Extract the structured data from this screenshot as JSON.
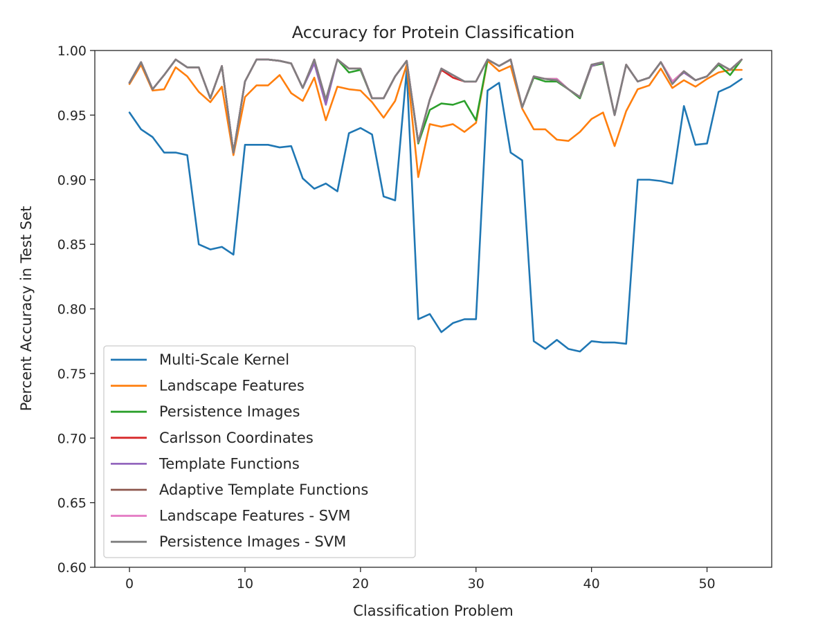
{
  "chart_data": {
    "type": "line",
    "title": "Accuracy for Protein Classification",
    "xlabel": "Classification Problem",
    "ylabel": "Percent Accuracy in Test Set",
    "xlim": [
      -3,
      55.6
    ],
    "ylim": [
      0.6,
      1.0
    ],
    "xticks": [
      0,
      10,
      20,
      30,
      40,
      50
    ],
    "yticks": [
      0.6,
      0.65,
      0.7,
      0.75,
      0.8,
      0.85,
      0.9,
      0.95,
      1.0
    ],
    "xtick_labels": [
      "0",
      "10",
      "20",
      "30",
      "40",
      "50"
    ],
    "ytick_labels": [
      "0.60",
      "0.65",
      "0.70",
      "0.75",
      "0.80",
      "0.85",
      "0.90",
      "0.95",
      "1.00"
    ],
    "grid": false,
    "legend_position": "lower-left",
    "x": [
      0,
      1,
      2,
      3,
      4,
      5,
      6,
      7,
      8,
      9,
      10,
      11,
      12,
      13,
      14,
      15,
      16,
      17,
      18,
      19,
      20,
      21,
      22,
      23,
      24,
      25,
      26,
      27,
      28,
      29,
      30,
      31,
      32,
      33,
      34,
      35,
      36,
      37,
      38,
      39,
      40,
      41,
      42,
      43,
      44,
      45,
      46,
      47,
      48,
      49,
      50,
      51,
      52,
      53
    ],
    "series": [
      {
        "name": "Multi-Scale Kernel",
        "color": "#1f77b4",
        "values": [
          0.952,
          0.939,
          0.933,
          0.921,
          0.921,
          0.919,
          0.85,
          0.846,
          0.848,
          0.842,
          0.927,
          0.927,
          0.927,
          0.925,
          0.926,
          0.901,
          0.893,
          0.897,
          0.891,
          0.936,
          0.94,
          0.935,
          0.887,
          0.884,
          0.985,
          0.792,
          0.796,
          0.782,
          0.789,
          0.792,
          0.792,
          0.969,
          0.975,
          0.921,
          0.915,
          0.775,
          0.769,
          0.776,
          0.769,
          0.767,
          0.775,
          0.774,
          0.774,
          0.773,
          0.9,
          0.9,
          0.899,
          0.897,
          0.957,
          0.927,
          0.928,
          0.968,
          0.972,
          0.978
        ]
      },
      {
        "name": "Landscape Features",
        "color": "#ff7f0e",
        "values": [
          0.974,
          0.989,
          0.969,
          0.97,
          0.987,
          0.98,
          0.968,
          0.96,
          0.972,
          0.919,
          0.964,
          0.973,
          0.973,
          0.981,
          0.967,
          0.961,
          0.979,
          0.946,
          0.972,
          0.97,
          0.969,
          0.96,
          0.948,
          0.961,
          0.989,
          0.902,
          0.943,
          0.941,
          0.943,
          0.937,
          0.944,
          0.992,
          0.984,
          0.988,
          0.955,
          0.939,
          0.939,
          0.931,
          0.93,
          0.937,
          0.947,
          0.952,
          0.926,
          0.953,
          0.97,
          0.973,
          0.986,
          0.971,
          0.977,
          0.972,
          0.978,
          0.983,
          0.985,
          0.985
        ]
      },
      {
        "name": "Persistence Images",
        "color": "#2ca02c",
        "values": [
          0.975,
          0.991,
          0.97,
          0.981,
          0.993,
          0.987,
          0.987,
          0.963,
          0.988,
          0.921,
          0.976,
          0.993,
          0.993,
          0.992,
          0.99,
          0.971,
          0.993,
          0.961,
          0.993,
          0.983,
          0.985,
          0.963,
          0.963,
          0.98,
          0.992,
          0.928,
          0.954,
          0.959,
          0.958,
          0.961,
          0.946,
          0.993,
          0.988,
          0.993,
          0.956,
          0.979,
          0.976,
          0.976,
          0.97,
          0.963,
          0.988,
          0.99,
          0.95,
          0.989,
          0.976,
          0.979,
          0.991,
          0.976,
          0.983,
          0.977,
          0.98,
          0.989,
          0.981,
          0.993
        ]
      },
      {
        "name": "Carlsson Coordinates",
        "color": "#d62728",
        "values": [
          0.975,
          0.991,
          0.97,
          0.981,
          0.993,
          0.987,
          0.987,
          0.963,
          0.988,
          0.921,
          0.976,
          0.993,
          0.993,
          0.992,
          0.99,
          0.971,
          0.993,
          0.961,
          0.993,
          0.986,
          0.986,
          0.963,
          0.963,
          0.98,
          0.992,
          0.929,
          0.962,
          0.985,
          0.979,
          0.976,
          0.976,
          0.993,
          0.988,
          0.993,
          0.956,
          0.98,
          0.978,
          0.977,
          0.97,
          0.964,
          0.988,
          0.991,
          0.95,
          0.989,
          0.976,
          0.979,
          0.991,
          0.976,
          0.983,
          0.977,
          0.98,
          0.99,
          0.985,
          0.993
        ]
      },
      {
        "name": "Template Functions",
        "color": "#9467bd",
        "values": [
          0.975,
          0.991,
          0.97,
          0.981,
          0.993,
          0.987,
          0.987,
          0.963,
          0.988,
          0.921,
          0.976,
          0.993,
          0.993,
          0.992,
          0.99,
          0.971,
          0.99,
          0.958,
          0.993,
          0.986,
          0.986,
          0.963,
          0.963,
          0.98,
          0.992,
          0.929,
          0.962,
          0.986,
          0.981,
          0.976,
          0.976,
          0.993,
          0.988,
          0.993,
          0.956,
          0.98,
          0.978,
          0.977,
          0.97,
          0.964,
          0.988,
          0.991,
          0.95,
          0.989,
          0.976,
          0.979,
          0.991,
          0.976,
          0.983,
          0.977,
          0.98,
          0.99,
          0.985,
          0.993
        ]
      },
      {
        "name": "Adaptive Template Functions",
        "color": "#8c564b",
        "values": [
          0.975,
          0.991,
          0.97,
          0.981,
          0.993,
          0.987,
          0.987,
          0.963,
          0.988,
          0.921,
          0.976,
          0.993,
          0.993,
          0.992,
          0.99,
          0.971,
          0.993,
          0.962,
          0.993,
          0.986,
          0.986,
          0.963,
          0.963,
          0.98,
          0.992,
          0.929,
          0.962,
          0.986,
          0.981,
          0.976,
          0.976,
          0.993,
          0.988,
          0.993,
          0.956,
          0.98,
          0.978,
          0.978,
          0.97,
          0.964,
          0.989,
          0.991,
          0.95,
          0.989,
          0.976,
          0.979,
          0.991,
          0.976,
          0.984,
          0.977,
          0.98,
          0.99,
          0.985,
          0.993
        ]
      },
      {
        "name": "Landscape Features - SVM",
        "color": "#e377c2",
        "values": [
          0.975,
          0.991,
          0.97,
          0.981,
          0.993,
          0.987,
          0.987,
          0.963,
          0.988,
          0.921,
          0.976,
          0.993,
          0.993,
          0.992,
          0.99,
          0.971,
          0.993,
          0.962,
          0.993,
          0.986,
          0.986,
          0.963,
          0.963,
          0.98,
          0.992,
          0.929,
          0.962,
          0.986,
          0.981,
          0.976,
          0.976,
          0.993,
          0.988,
          0.993,
          0.956,
          0.98,
          0.978,
          0.978,
          0.97,
          0.964,
          0.989,
          0.991,
          0.95,
          0.989,
          0.976,
          0.979,
          0.991,
          0.976,
          0.984,
          0.977,
          0.98,
          0.99,
          0.985,
          0.993
        ]
      },
      {
        "name": "Persistence Images - SVM",
        "color": "#7f7f7f",
        "values": [
          0.975,
          0.991,
          0.97,
          0.981,
          0.993,
          0.987,
          0.987,
          0.963,
          0.988,
          0.921,
          0.976,
          0.993,
          0.993,
          0.992,
          0.99,
          0.971,
          0.993,
          0.962,
          0.993,
          0.986,
          0.986,
          0.963,
          0.963,
          0.98,
          0.992,
          0.929,
          0.962,
          0.986,
          0.981,
          0.976,
          0.976,
          0.993,
          0.988,
          0.993,
          0.956,
          0.98,
          0.978,
          0.977,
          0.97,
          0.964,
          0.989,
          0.991,
          0.95,
          0.989,
          0.976,
          0.979,
          0.991,
          0.974,
          0.984,
          0.977,
          0.98,
          0.99,
          0.985,
          0.993
        ]
      }
    ]
  }
}
